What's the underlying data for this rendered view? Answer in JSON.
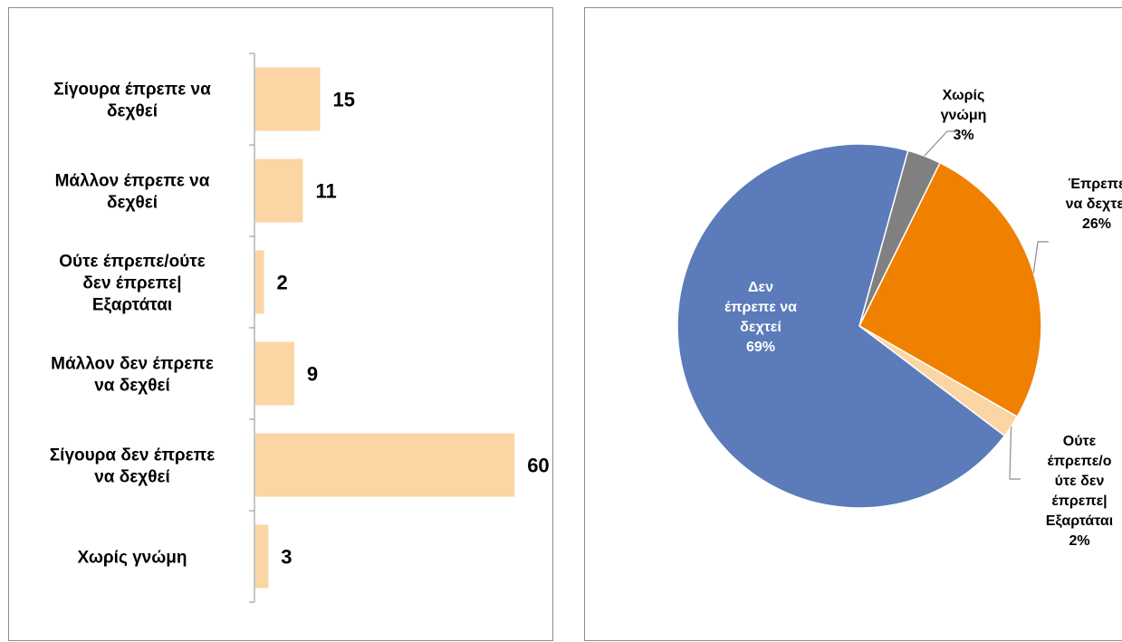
{
  "chart_data": [
    {
      "type": "bar",
      "orientation": "horizontal",
      "categories": [
        [
          "Σίγουρα έπρεπε να",
          "δεχθεί"
        ],
        [
          "Μάλλον έπρεπε να",
          "δεχθεί"
        ],
        [
          "Ούτε έπρεπε/ούτε",
          "δεν έπρεπε|",
          "Εξαρτάται"
        ],
        [
          "Μάλλον δεν έπρεπε",
          "να δεχθεί"
        ],
        [
          "Σίγουρα δεν έπρεπε",
          "να δεχθεί"
        ],
        [
          "Χωρίς γνώμη"
        ]
      ],
      "values": [
        15,
        11,
        2,
        9,
        60,
        3
      ],
      "data_labels": [
        "15",
        "11",
        "2",
        "9",
        "60",
        "3"
      ],
      "bar_color": "#FCD5A4",
      "grid": false,
      "legend": "none"
    },
    {
      "type": "pie",
      "slices": [
        {
          "label_lines": [
            "Χωρίς",
            "γνώμη"
          ],
          "percent_label": "3%",
          "value": 3,
          "color": "#808080"
        },
        {
          "label_lines": [
            "Έπρεπε",
            "να δεχτεί"
          ],
          "percent_label": "26%",
          "value": 26,
          "color": "#F08000"
        },
        {
          "label_lines": [
            "Ούτε",
            "έπρεπε/ο",
            "ύτε δεν",
            "έπρεπε|",
            "Εξαρτάται"
          ],
          "percent_label": "2%",
          "value": 2,
          "color": "#FCD5A4"
        },
        {
          "label_lines": [
            "Δεν",
            "έπρεπε να",
            "δεχτεί"
          ],
          "percent_label": "69%",
          "value": 69,
          "color": "#5B7BBA"
        }
      ],
      "legend": "none"
    }
  ]
}
